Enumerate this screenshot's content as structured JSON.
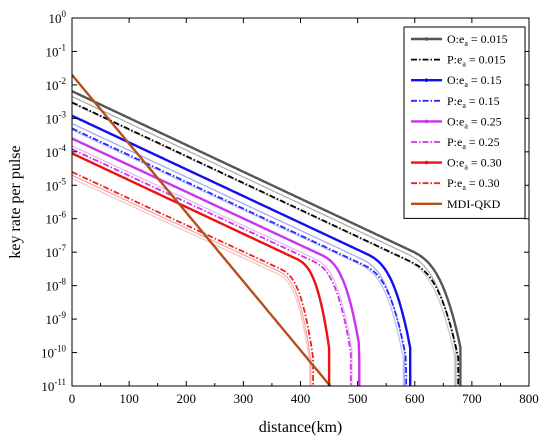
{
  "chart_data": {
    "type": "line",
    "title": "",
    "xlabel": "distance(km)",
    "ylabel": "key rate per pulse",
    "xlim": [
      0,
      800
    ],
    "ylim_exp": [
      -11,
      0
    ],
    "yscale": "log",
    "grid": false,
    "legend_position": "top-right",
    "x_ticks": [
      "0",
      "100",
      "200",
      "300",
      "400",
      "500",
      "600",
      "700",
      "800"
    ],
    "y_tick_mantissa": "10",
    "y_ticks": [
      {
        "exp": "0",
        "value": 0
      },
      {
        "exp": "-1",
        "value": -1
      },
      {
        "exp": "-2",
        "value": -2
      },
      {
        "exp": "-3",
        "value": -3
      },
      {
        "exp": "-4",
        "value": -4
      },
      {
        "exp": "-5",
        "value": -5
      },
      {
        "exp": "-6",
        "value": -6
      },
      {
        "exp": "-7",
        "value": -7
      },
      {
        "exp": "-8",
        "value": -8
      },
      {
        "exp": "-9",
        "value": -9
      },
      {
        "exp": "-10",
        "value": -10
      },
      {
        "exp": "-11",
        "value": -11
      }
    ],
    "series": [
      {
        "name": "O:e",
        "sub": "a",
        "value_text": " = 0.015",
        "color": "#555555",
        "dash": "solid",
        "y0": 0.0065,
        "cutoff": 680,
        "drop": 52,
        "knee": 90
      },
      {
        "name": "P:e",
        "sub": "a",
        "value_text": " = 0.015",
        "color": "#000000",
        "dash": "dashdot",
        "y0": 0.003,
        "cutoff": 676,
        "drop": 52,
        "knee": 90
      },
      {
        "name": "O:e",
        "sub": "a",
        "value_text": " = 0.15",
        "color": "#1010ee",
        "dash": "solid",
        "y0": 0.0012,
        "cutoff": 592,
        "drop": 44,
        "knee": 80
      },
      {
        "name": "P:e",
        "sub": "a",
        "value_text": " = 0.15",
        "color": "#2a2aff",
        "dash": "dashdot",
        "y0": 0.0005,
        "cutoff": 585,
        "drop": 44,
        "knee": 80
      },
      {
        "name": "O:e",
        "sub": "a",
        "value_text": " = 0.25",
        "color": "#cc33ee",
        "dash": "solid",
        "y0": 0.00025,
        "cutoff": 503,
        "drop": 38,
        "knee": 70
      },
      {
        "name": "P:e",
        "sub": "a",
        "value_text": " = 0.25",
        "color": "#cc33ee",
        "dash": "dashdot",
        "y0": 0.00012,
        "cutoff": 488,
        "drop": 38,
        "knee": 70
      },
      {
        "name": "O:e",
        "sub": "a",
        "value_text": " = 0.30",
        "color": "#ee1111",
        "dash": "solid",
        "y0": 9e-05,
        "cutoff": 450,
        "drop": 34,
        "knee": 60
      },
      {
        "name": "P:e",
        "sub": "a",
        "value_text": " = 0.30",
        "color": "#ee2222",
        "dash": "dashdot",
        "y0": 2.5e-05,
        "cutoff": 422,
        "drop": 34,
        "knee": 60
      },
      {
        "name": "MDI-QKD",
        "sub": "",
        "value_text": "",
        "color": "#b5501a",
        "dash": "solid",
        "y0": 0.02,
        "cutoff": 452,
        "drop": 0,
        "knee": 0
      }
    ],
    "faded_copies": [
      {
        "color": "#aaaaaa",
        "y0": 0.0045,
        "cutoff": 672,
        "drop": 52,
        "knee": 90
      },
      {
        "color": "#c8c8c8",
        "y0": 0.0028,
        "cutoff": 670,
        "drop": 52,
        "knee": 90
      },
      {
        "color": "#9da6f0",
        "y0": 0.0007,
        "cutoff": 582,
        "drop": 44,
        "knee": 80
      },
      {
        "color": "#b7bef5",
        "y0": 0.00045,
        "cutoff": 580,
        "drop": 44,
        "knee": 80
      },
      {
        "color": "#e7b3f3",
        "y0": 0.00015,
        "cutoff": 490,
        "drop": 38,
        "knee": 70
      },
      {
        "color": "#f2a3a3",
        "y0": 2e-05,
        "cutoff": 418,
        "drop": 34,
        "knee": 60
      },
      {
        "color": "#f8c4c4",
        "y0": 1.6e-05,
        "cutoff": 416,
        "drop": 34,
        "knee": 60
      }
    ]
  }
}
